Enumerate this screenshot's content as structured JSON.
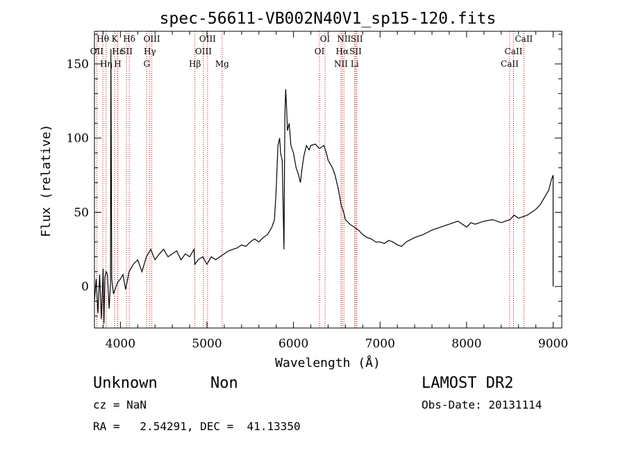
{
  "chart_data": {
    "type": "line",
    "title": "spec-56611-VB002N40V1_sp15-120.fits",
    "xlabel": "Wavelength (Å)",
    "ylabel": "Flux (relative)",
    "xlim": [
      3700,
      9100
    ],
    "ylim": [
      -28,
      172
    ],
    "x_ticks": [
      4000,
      5000,
      6000,
      7000,
      8000,
      9000
    ],
    "y_ticks": [
      0,
      50,
      100,
      150
    ],
    "grid": false,
    "line_color": "#000000",
    "marker_color": "#cc0000",
    "series": [
      {
        "x": [
          3700,
          3720,
          3740,
          3760,
          3780,
          3800,
          3810,
          3820,
          3835,
          3850,
          3870,
          3885,
          3890,
          3900,
          3920,
          3950,
          3970,
          4000,
          4030,
          4060,
          4100,
          4150,
          4200,
          4250,
          4300,
          4350,
          4400,
          4450,
          4500,
          4550,
          4600,
          4650,
          4700,
          4750,
          4800,
          4850,
          4860,
          4900,
          4950,
          5000,
          5050,
          5100,
          5150,
          5200,
          5250,
          5300,
          5350,
          5400,
          5450,
          5500,
          5550,
          5600,
          5650,
          5700,
          5750,
          5780,
          5800,
          5820,
          5840,
          5850,
          5870,
          5890,
          5900,
          5910,
          5920,
          5930,
          5950,
          5970,
          6000,
          6030,
          6060,
          6080,
          6100,
          6120,
          6150,
          6180,
          6200,
          6250,
          6300,
          6350,
          6380,
          6400,
          6450,
          6480,
          6500,
          6520,
          6550,
          6580,
          6600,
          6650,
          6700,
          6750,
          6800,
          6850,
          6900,
          6950,
          7000,
          7050,
          7100,
          7150,
          7200,
          7250,
          7300,
          7400,
          7500,
          7600,
          7700,
          7800,
          7900,
          8000,
          8050,
          8100,
          8200,
          8300,
          8400,
          8500,
          8550,
          8600,
          8650,
          8700,
          8750,
          8800,
          8850,
          8900,
          8950,
          8980,
          9000,
          9000
        ],
        "y": [
          -10,
          5,
          -18,
          8,
          -22,
          12,
          -25,
          6,
          10,
          8,
          -15,
          2,
          160,
          5,
          -5,
          0,
          3,
          5,
          8,
          -2,
          10,
          15,
          18,
          10,
          20,
          25,
          18,
          22,
          25,
          20,
          22,
          24,
          18,
          22,
          20,
          25,
          15,
          18,
          20,
          15,
          20,
          18,
          20,
          22,
          24,
          25,
          26,
          28,
          27,
          30,
          32,
          30,
          33,
          35,
          40,
          45,
          65,
          95,
          100,
          90,
          85,
          25,
          115,
          133,
          120,
          105,
          110,
          95,
          90,
          80,
          75,
          70,
          80,
          88,
          95,
          92,
          95,
          96,
          93,
          95,
          90,
          85,
          80,
          75,
          70,
          65,
          55,
          50,
          45,
          42,
          40,
          38,
          35,
          33,
          32,
          30,
          30,
          29,
          31,
          30,
          28,
          27,
          30,
          33,
          35,
          38,
          40,
          42,
          44,
          40,
          43,
          42,
          44,
          45,
          43,
          45,
          48,
          46,
          47,
          48,
          50,
          52,
          55,
          60,
          65,
          72,
          75,
          0
        ]
      }
    ],
    "line_markers": [
      {
        "label": "Hθ",
        "x": 3797,
        "row": 0
      },
      {
        "label": "OII",
        "x": 3727,
        "row": 1
      },
      {
        "label": "Hη",
        "x": 3835,
        "row": 2
      },
      {
        "label": "K",
        "x": 3934,
        "row": 0
      },
      {
        "label": "H",
        "x": 3969,
        "row": 2
      },
      {
        "label": "Hε",
        "x": 3970,
        "row": 1
      },
      {
        "label": "SII",
        "x": 4070,
        "row": 1
      },
      {
        "label": "Hδ",
        "x": 4102,
        "row": 0
      },
      {
        "label": "OIII",
        "x": 4363,
        "row": 0
      },
      {
        "label": "Hγ",
        "x": 4340,
        "row": 1
      },
      {
        "label": "G",
        "x": 4304,
        "row": 2
      },
      {
        "label": "Hβ",
        "x": 4861,
        "row": 2
      },
      {
        "label": "OIII",
        "x": 4959,
        "row": 1
      },
      {
        "label": "OIII",
        "x": 5007,
        "row": 0
      },
      {
        "label": "Mg",
        "x": 5175,
        "row": 2
      },
      {
        "label": "OI",
        "x": 6300,
        "row": 1
      },
      {
        "label": "OI",
        "x": 6364,
        "row": 0
      },
      {
        "label": "NII",
        "x": 6548,
        "row": 2
      },
      {
        "label": "Hα",
        "x": 6563,
        "row": 1
      },
      {
        "label": "NII",
        "x": 6583,
        "row": 0
      },
      {
        "label": "SII",
        "x": 6717,
        "row": 1
      },
      {
        "label": "SII",
        "x": 6731,
        "row": 0
      },
      {
        "label": "Li",
        "x": 6707,
        "row": 2
      },
      {
        "label": "CaII",
        "x": 8498,
        "row": 2
      },
      {
        "label": "CaII",
        "x": 8542,
        "row": 1
      },
      {
        "label": "CaII",
        "x": 8662,
        "row": 0
      }
    ]
  },
  "info": {
    "object_class": "Unknown",
    "object_subclass": "Non",
    "survey": "LAMOST DR2",
    "redshift_text": "cz = NaN",
    "obs_date_text": "Obs-Date: 20131114",
    "coords_text": "RA =   2.54291, DEC =  41.13350"
  }
}
